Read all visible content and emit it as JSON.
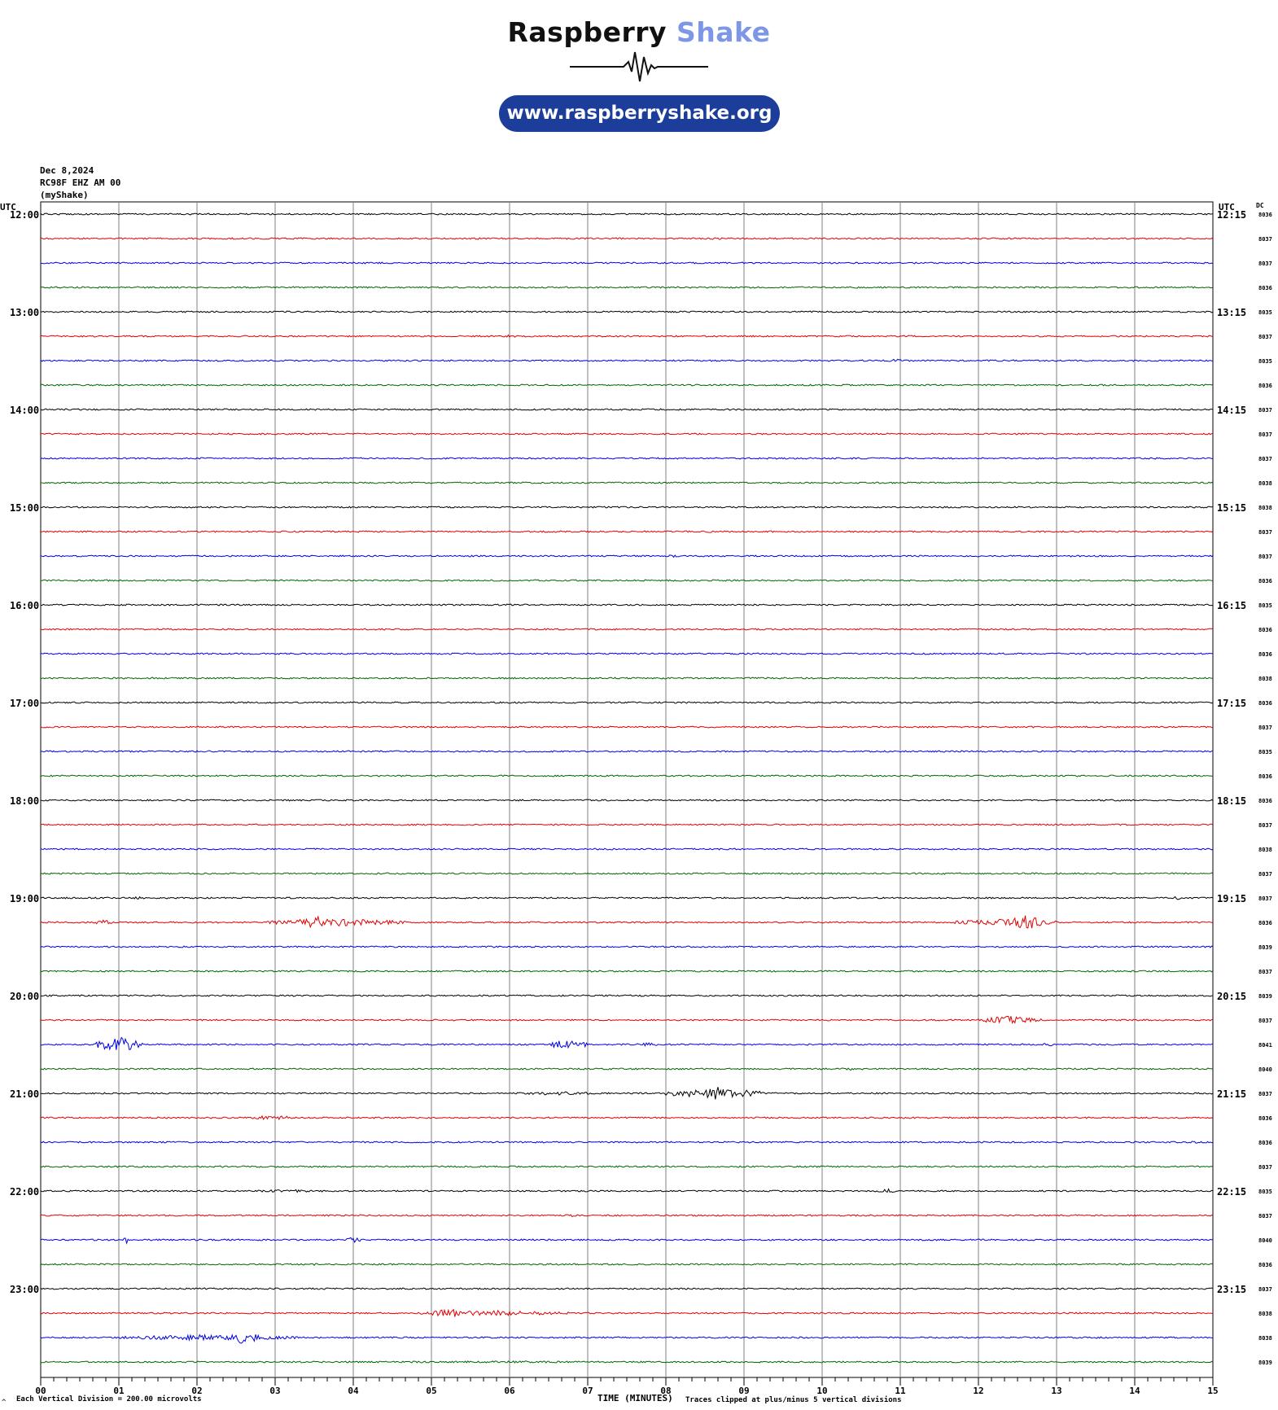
{
  "logo": {
    "name_primary": "Raspberry",
    "name_secondary": "Shake",
    "url": "www.raspberryshake.org"
  },
  "header": {
    "date": "Dec 8,2024",
    "station": "RC98F EHZ AM 00",
    "network": "(myShake)"
  },
  "chart_data": {
    "type": "line",
    "title": "",
    "xlabel": "TIME (MINUTES)",
    "xlim": [
      0,
      15
    ],
    "x_tick_labels": [
      "00",
      "01",
      "02",
      "03",
      "04",
      "05",
      "06",
      "07",
      "08",
      "09",
      "10",
      "11",
      "12",
      "13",
      "14",
      "15"
    ],
    "left_axis_label": "UTC",
    "right_axis_label": "UTC",
    "dc_label": "DC",
    "left_hour_labels": [
      "12:00",
      "13:00",
      "14:00",
      "15:00",
      "16:00",
      "17:00",
      "18:00",
      "19:00",
      "20:00",
      "21:00",
      "22:00",
      "23:00"
    ],
    "right_hour_labels": [
      "12:15",
      "13:15",
      "14:15",
      "15:15",
      "16:15",
      "17:15",
      "18:15",
      "19:15",
      "20:15",
      "21:15",
      "22:15",
      "23:15"
    ],
    "trace_colors": [
      "#000000",
      "#e00000",
      "#0000e0",
      "#006400"
    ],
    "dc_offsets": [
      "8036",
      "8037",
      "8037",
      "8036",
      "8035",
      "8037",
      "8035",
      "8036",
      "8037",
      "8037",
      "8037",
      "8038",
      "8038",
      "8037",
      "8037",
      "8036",
      "8035",
      "8036",
      "8036",
      "8038",
      "8036",
      "8037",
      "8035",
      "8036",
      "8036",
      "8037",
      "8038",
      "8037",
      "8037",
      "8036",
      "8039",
      "8037",
      "8039",
      "8037",
      "8041",
      "8040",
      "8037",
      "8036",
      "8036",
      "8037",
      "8035",
      "8037",
      "8040",
      "8036",
      "8037",
      "8038",
      "8038",
      "8039"
    ],
    "events": [
      {
        "trace": 1,
        "start_min": 8.5,
        "end_min": 8.8,
        "amp": 0.5
      },
      {
        "trace": 5,
        "start_min": 5.9,
        "end_min": 6.1,
        "amp": 0.6
      },
      {
        "trace": 6,
        "start_min": 10.8,
        "end_min": 11.1,
        "amp": 0.6
      },
      {
        "trace": 13,
        "start_min": 8.3,
        "end_min": 8.8,
        "amp": 0.4
      },
      {
        "trace": 14,
        "start_min": 8.0,
        "end_min": 8.2,
        "amp": 0.6
      },
      {
        "trace": 14,
        "start_min": 13.1,
        "end_min": 13.3,
        "amp": 0.6
      },
      {
        "trace": 28,
        "start_min": 1.1,
        "end_min": 1.4,
        "amp": 0.5
      },
      {
        "trace": 28,
        "start_min": 14.5,
        "end_min": 14.6,
        "amp": 0.9
      },
      {
        "trace": 29,
        "start_min": 0.7,
        "end_min": 0.9,
        "amp": 1.2
      },
      {
        "trace": 29,
        "start_min": 2.9,
        "end_min": 4.7,
        "amp": 1.5
      },
      {
        "trace": 29,
        "start_min": 3.3,
        "end_min": 3.7,
        "amp": 3.0
      },
      {
        "trace": 29,
        "start_min": 11.7,
        "end_min": 13.0,
        "amp": 1.5
      },
      {
        "trace": 29,
        "start_min": 12.4,
        "end_min": 12.8,
        "amp": 3.2
      },
      {
        "trace": 33,
        "start_min": 12.0,
        "end_min": 12.8,
        "amp": 1.6
      },
      {
        "trace": 34,
        "start_min": 0.7,
        "end_min": 1.3,
        "amp": 3.2
      },
      {
        "trace": 34,
        "start_min": 6.5,
        "end_min": 7.0,
        "amp": 2.0
      },
      {
        "trace": 34,
        "start_min": 7.6,
        "end_min": 7.9,
        "amp": 0.8
      },
      {
        "trace": 34,
        "start_min": 12.8,
        "end_min": 13.0,
        "amp": 0.8
      },
      {
        "trace": 35,
        "start_min": 10.2,
        "end_min": 10.6,
        "amp": 0.6
      },
      {
        "trace": 36,
        "start_min": 6.0,
        "end_min": 7.2,
        "amp": 0.7
      },
      {
        "trace": 36,
        "start_min": 8.0,
        "end_min": 9.3,
        "amp": 2.0
      },
      {
        "trace": 36,
        "start_min": 8.5,
        "end_min": 8.8,
        "amp": 2.8
      },
      {
        "trace": 37,
        "start_min": 2.6,
        "end_min": 3.3,
        "amp": 0.9
      },
      {
        "trace": 38,
        "start_min": 14.6,
        "end_min": 15.0,
        "amp": 0.5
      },
      {
        "trace": 40,
        "start_min": 2.6,
        "end_min": 3.8,
        "amp": 0.6
      },
      {
        "trace": 40,
        "start_min": 10.7,
        "end_min": 11.0,
        "amp": 0.9
      },
      {
        "trace": 41,
        "start_min": 6.7,
        "end_min": 6.9,
        "amp": 0.6
      },
      {
        "trace": 42,
        "start_min": 1.05,
        "end_min": 1.15,
        "amp": 2.2
      },
      {
        "trace": 42,
        "start_min": 3.9,
        "end_min": 4.1,
        "amp": 1.2
      },
      {
        "trace": 43,
        "start_min": 3.4,
        "end_min": 3.6,
        "amp": 0.5
      },
      {
        "trace": 45,
        "start_min": 4.8,
        "end_min": 6.8,
        "amp": 1.1
      },
      {
        "trace": 45,
        "start_min": 5.0,
        "end_min": 5.5,
        "amp": 1.8
      },
      {
        "trace": 46,
        "start_min": 1.0,
        "end_min": 3.3,
        "amp": 1.2
      },
      {
        "trace": 46,
        "start_min": 2.4,
        "end_min": 2.8,
        "amp": 2.6
      },
      {
        "trace": 47,
        "start_min": 2.0,
        "end_min": 10.0,
        "amp": 0.4
      }
    ]
  },
  "footer": {
    "scale_note": "Each Vertical Division =  200.00 microvolts",
    "clip_note": "Traces clipped at plus/minus 5 vertical divisions",
    "corner_mark": "^"
  }
}
